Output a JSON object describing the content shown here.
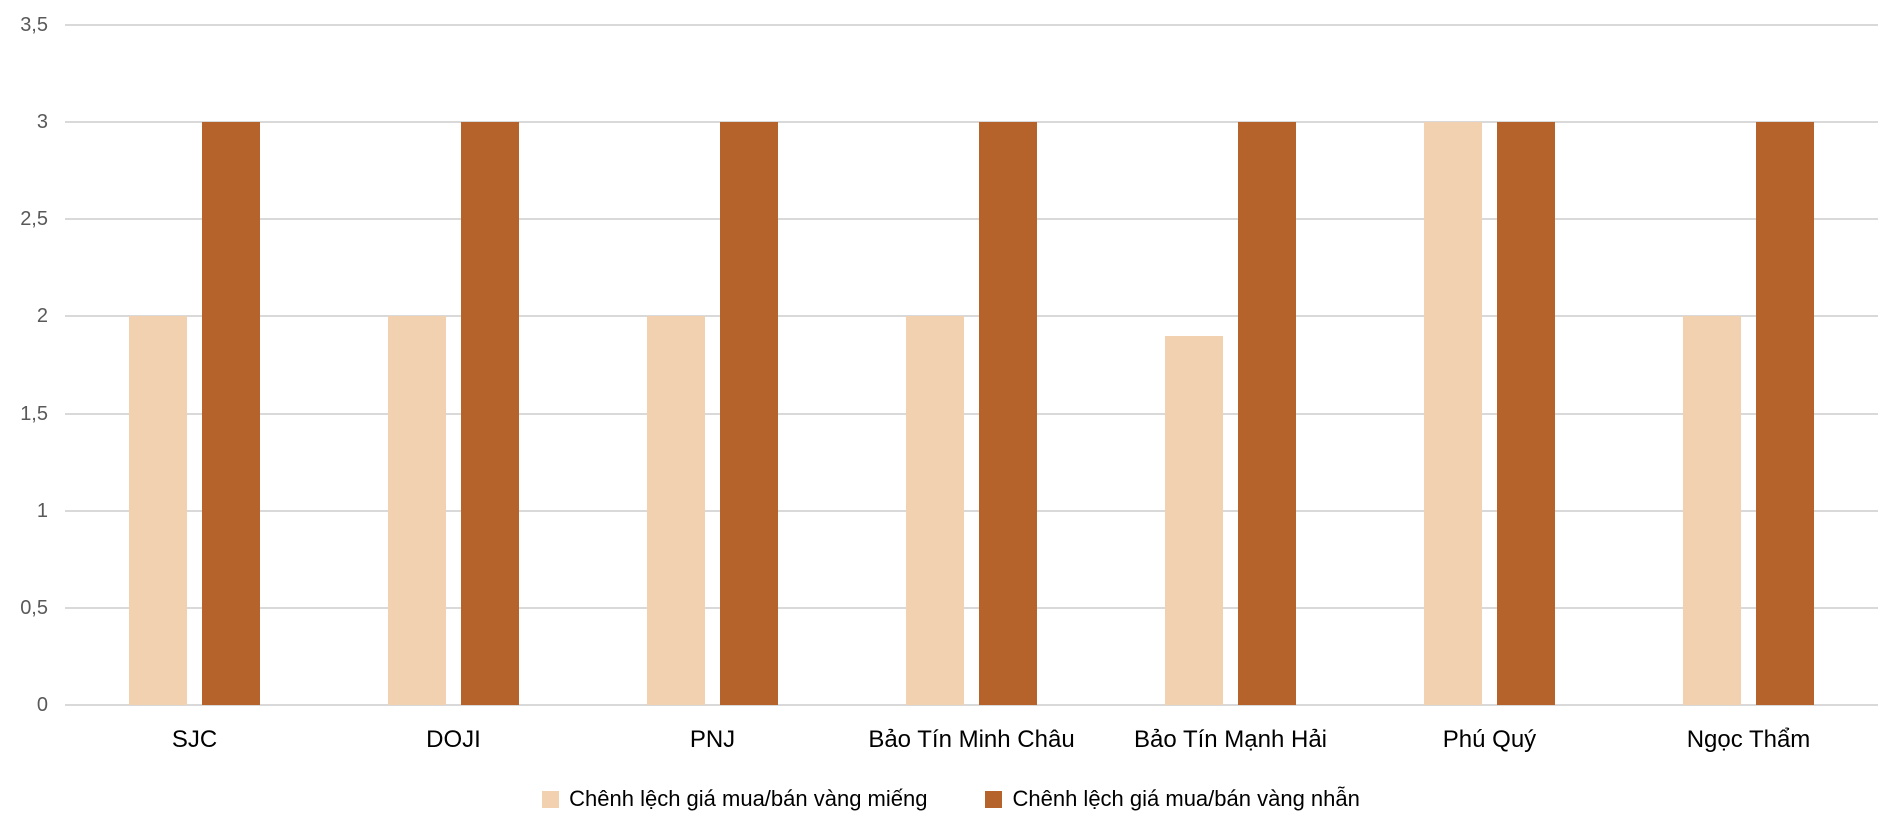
{
  "chart_data": {
    "type": "bar",
    "title": "",
    "xlabel": "",
    "ylabel": "",
    "categories": [
      "SJC",
      "DOJI",
      "PNJ",
      "Bảo Tín Minh Châu",
      "Bảo Tín Mạnh Hải",
      "Phú Quý",
      "Ngọc Thẩm"
    ],
    "series": [
      {
        "name": "Chênh lệch giá mua/bán vàng miếng",
        "color": "#f1d1b0",
        "values": [
          2,
          2,
          2,
          2,
          1.9,
          3,
          2
        ]
      },
      {
        "name": "Chênh lệch giá mua/bán vàng nhẫn",
        "color": "#b5622b",
        "values": [
          3,
          3,
          3,
          3,
          3,
          3,
          3
        ]
      }
    ],
    "y_axis": {
      "min": 0,
      "max": 3.5,
      "step": 0.5,
      "tick_labels": [
        "0",
        "0,5",
        "1",
        "1,5",
        "2",
        "2,5",
        "3",
        "3,5"
      ]
    },
    "grid": true,
    "gridline_color": "#d9d9d9",
    "axis_label_color": "#595959",
    "category_label_color": "#000000",
    "legend_position": "bottom",
    "background_color": "#ffffff"
  }
}
